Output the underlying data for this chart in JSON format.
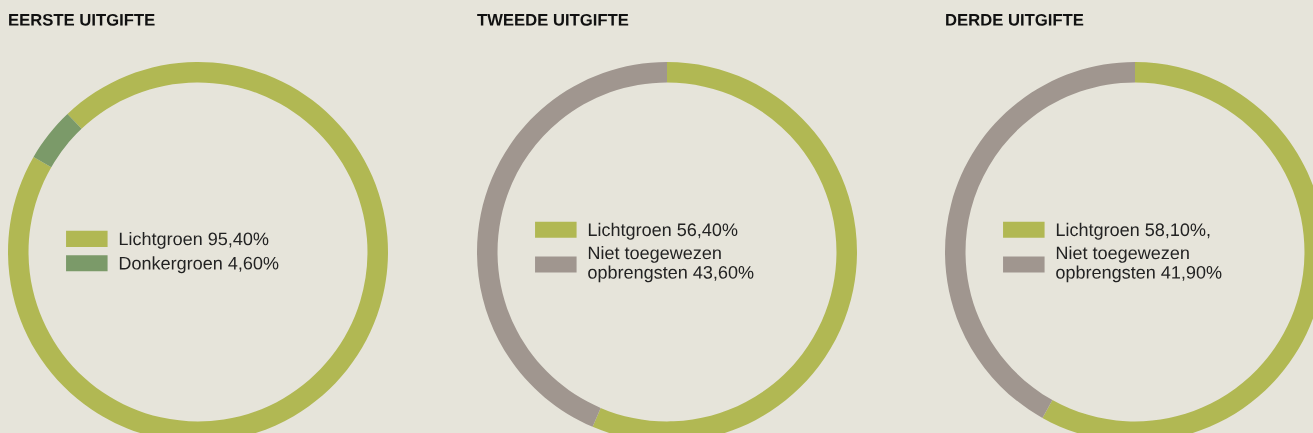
{
  "chart_data": [
    {
      "type": "donut",
      "title": "EERSTE UITGIFTE",
      "categories": [
        "Lichtgroen",
        "Donkergroen"
      ],
      "values": [
        95.4,
        4.6
      ],
      "value_labels": [
        "95,40%",
        "4,60%"
      ],
      "colors": [
        "#b1b853",
        "#7b9a69"
      ],
      "legend": "center"
    },
    {
      "type": "donut",
      "title": "TWEEDE UITGIFTE",
      "categories": [
        "Lichtgroen",
        "Niet toegewezen opbrengsten"
      ],
      "values": [
        56.4,
        43.6
      ],
      "value_labels": [
        "56,40%",
        "43,60%"
      ],
      "colors": [
        "#b1b853",
        "#a0968f"
      ],
      "legend": "center"
    },
    {
      "type": "donut",
      "title": "DERDE UITGIFTE",
      "categories": [
        "Lichtgroen",
        "Niet toegewezen opbrengsten"
      ],
      "values": [
        58.1,
        41.9
      ],
      "value_labels": [
        "58,10%,",
        "41,90%"
      ],
      "colors": [
        "#b1b853",
        "#a0968f"
      ],
      "legend": "center"
    }
  ]
}
